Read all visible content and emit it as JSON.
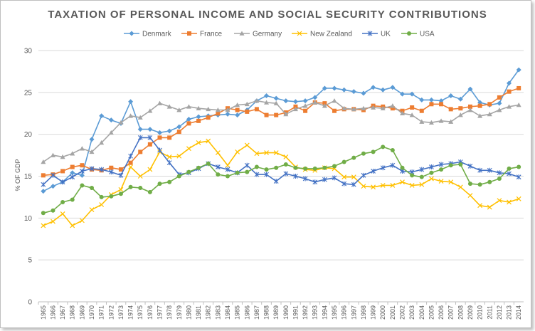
{
  "chart_data": {
    "type": "line",
    "title": "TAXATION OF PERSONAL INCOME AND SOCIAL SECURITY CONTRIBUTIONS",
    "xlabel": "",
    "ylabel": "% OF GDP",
    "ylim": [
      0,
      30
    ],
    "yticks": [
      0,
      5,
      10,
      15,
      20,
      25,
      30
    ],
    "grid": true,
    "legend": "top",
    "categories": [
      "1965",
      "1966",
      "1967",
      "1968",
      "1969",
      "1970",
      "1971",
      "1972",
      "1973",
      "1974",
      "1975",
      "1976",
      "1977",
      "1978",
      "1979",
      "1980",
      "1981",
      "1982",
      "1983",
      "1984",
      "1985",
      "1986",
      "1987",
      "1988",
      "1989",
      "1990",
      "1991",
      "1992",
      "1993",
      "1994",
      "1995",
      "1996",
      "1997",
      "1998",
      "1999",
      "2000",
      "2001",
      "2002",
      "2003",
      "2004",
      "2005",
      "2006",
      "2007",
      "2008",
      "2009",
      "2010",
      "2011",
      "2012",
      "2013",
      "2014"
    ],
    "series": [
      {
        "name": "Denmark",
        "color": "#5b9bd5",
        "marker": "diamond",
        "values": [
          13.2,
          13.8,
          14.3,
          15.4,
          15.1,
          19.4,
          22.2,
          21.7,
          21.3,
          23.9,
          20.6,
          20.6,
          20.2,
          20.4,
          20.9,
          21.8,
          22.1,
          22.2,
          22.3,
          22.4,
          22.3,
          22.9,
          24.0,
          24.6,
          24.3,
          24.0,
          23.9,
          24.0,
          24.4,
          25.5,
          25.5,
          25.3,
          25.1,
          24.9,
          25.6,
          25.3,
          25.6,
          24.8,
          24.8,
          24.1,
          24.1,
          24.0,
          24.6,
          24.2,
          25.4,
          23.8,
          23.5,
          23.7,
          26.1,
          27.7
        ]
      },
      {
        "name": "France",
        "color": "#ed7d31",
        "marker": "square",
        "values": [
          15.1,
          15.2,
          15.6,
          16.1,
          16.3,
          15.8,
          15.7,
          16.0,
          15.8,
          16.6,
          17.9,
          18.8,
          19.6,
          19.6,
          20.3,
          21.3,
          21.6,
          22.0,
          22.5,
          23.1,
          22.9,
          22.7,
          23.0,
          22.3,
          22.3,
          22.6,
          23.3,
          22.8,
          23.8,
          23.7,
          22.8,
          23.0,
          23.0,
          22.9,
          23.4,
          23.3,
          23.1,
          22.8,
          23.2,
          22.8,
          23.6,
          23.6,
          23.0,
          23.1,
          23.3,
          23.4,
          23.6,
          24.4,
          25.1,
          25.5
        ]
      },
      {
        "name": "Germany",
        "color": "#a5a5a5",
        "marker": "triangle",
        "values": [
          16.7,
          17.5,
          17.3,
          17.7,
          18.3,
          17.9,
          19.0,
          20.2,
          21.4,
          22.2,
          22.0,
          22.8,
          23.7,
          23.3,
          22.9,
          23.3,
          23.1,
          23.0,
          22.9,
          22.9,
          23.5,
          23.6,
          24.0,
          23.8,
          23.7,
          22.4,
          23.0,
          23.4,
          23.8,
          23.4,
          24.0,
          23.1,
          23.0,
          23.1,
          23.2,
          23.1,
          23.4,
          22.5,
          22.3,
          21.5,
          21.4,
          21.6,
          21.5,
          22.3,
          22.9,
          22.2,
          22.4,
          22.9,
          23.3,
          23.5
        ]
      },
      {
        "name": "New Zealand",
        "color": "#ffc000",
        "marker": "x",
        "values": [
          9.1,
          9.6,
          10.5,
          9.1,
          9.7,
          11.0,
          11.6,
          12.8,
          13.4,
          16.1,
          15.0,
          15.8,
          17.9,
          17.3,
          17.4,
          18.3,
          19.0,
          19.2,
          17.8,
          16.3,
          17.9,
          18.7,
          17.7,
          17.8,
          17.8,
          17.3,
          16.1,
          15.8,
          15.7,
          16.0,
          15.9,
          14.9,
          14.9,
          13.8,
          13.7,
          13.9,
          13.9,
          14.3,
          13.9,
          14.0,
          14.7,
          14.4,
          14.3,
          13.7,
          12.7,
          11.5,
          11.3,
          12.1,
          11.9,
          12.3
        ]
      },
      {
        "name": "UK",
        "color": "#4472c4",
        "marker": "star",
        "values": [
          14.0,
          15.1,
          14.3,
          14.9,
          15.6,
          15.9,
          15.8,
          15.5,
          15.1,
          17.4,
          19.6,
          19.6,
          18.1,
          16.6,
          15.2,
          15.4,
          15.9,
          16.5,
          16.1,
          15.8,
          15.4,
          16.3,
          15.2,
          15.2,
          14.4,
          15.3,
          15.0,
          14.7,
          14.3,
          14.6,
          14.8,
          14.1,
          14.0,
          15.1,
          15.6,
          16.0,
          16.3,
          15.6,
          15.5,
          15.8,
          16.1,
          16.4,
          16.5,
          16.7,
          16.2,
          15.7,
          15.7,
          15.4,
          15.3,
          14.9
        ]
      },
      {
        "name": "USA",
        "color": "#70ad47",
        "marker": "circle",
        "values": [
          10.6,
          10.9,
          11.9,
          12.2,
          13.9,
          13.6,
          12.5,
          12.6,
          12.9,
          13.7,
          13.6,
          13.1,
          14.1,
          14.3,
          15.0,
          15.5,
          16.0,
          16.5,
          15.2,
          15.0,
          15.4,
          15.5,
          16.1,
          15.8,
          16.0,
          16.4,
          16.0,
          15.9,
          15.9,
          16.0,
          16.2,
          16.7,
          17.2,
          17.7,
          17.9,
          18.5,
          18.1,
          16.0,
          15.1,
          14.9,
          15.4,
          15.8,
          16.3,
          16.4,
          14.1,
          14.0,
          14.3,
          14.7,
          15.9,
          16.1
        ]
      }
    ]
  }
}
